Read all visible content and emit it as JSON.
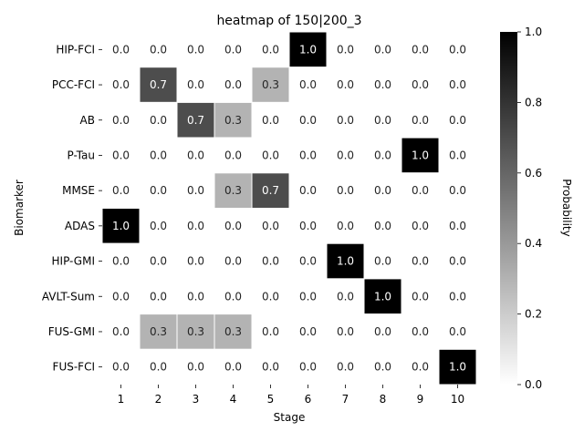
{
  "chart_data": {
    "type": "heatmap",
    "title": "heatmap of 150|200_3",
    "xlabel": "Stage",
    "ylabel": "Biomarker",
    "x_categories": [
      "1",
      "2",
      "3",
      "4",
      "5",
      "6",
      "7",
      "8",
      "9",
      "10"
    ],
    "y_categories": [
      "HIP-FCI",
      "PCC-FCI",
      "AB",
      "P-Tau",
      "MMSE",
      "ADAS",
      "HIP-GMI",
      "AVLT-Sum",
      "FUS-GMI",
      "FUS-FCI"
    ],
    "values": [
      [
        0.0,
        0.0,
        0.0,
        0.0,
        0.0,
        1.0,
        0.0,
        0.0,
        0.0,
        0.0
      ],
      [
        0.0,
        0.7,
        0.0,
        0.0,
        0.3,
        0.0,
        0.0,
        0.0,
        0.0,
        0.0
      ],
      [
        0.0,
        0.0,
        0.7,
        0.3,
        0.0,
        0.0,
        0.0,
        0.0,
        0.0,
        0.0
      ],
      [
        0.0,
        0.0,
        0.0,
        0.0,
        0.0,
        0.0,
        0.0,
        0.0,
        1.0,
        0.0
      ],
      [
        0.0,
        0.0,
        0.0,
        0.3,
        0.7,
        0.0,
        0.0,
        0.0,
        0.0,
        0.0
      ],
      [
        1.0,
        0.0,
        0.0,
        0.0,
        0.0,
        0.0,
        0.0,
        0.0,
        0.0,
        0.0
      ],
      [
        0.0,
        0.0,
        0.0,
        0.0,
        0.0,
        0.0,
        1.0,
        0.0,
        0.0,
        0.0
      ],
      [
        0.0,
        0.0,
        0.0,
        0.0,
        0.0,
        0.0,
        0.0,
        1.0,
        0.0,
        0.0
      ],
      [
        0.0,
        0.3,
        0.3,
        0.3,
        0.0,
        0.0,
        0.0,
        0.0,
        0.0,
        0.0
      ],
      [
        0.0,
        0.0,
        0.0,
        0.0,
        0.0,
        0.0,
        0.0,
        0.0,
        0.0,
        1.0
      ]
    ],
    "value_format": "0.0",
    "colormap": "Greys",
    "colormap_low": "#ffffff",
    "colormap_high": "#000000",
    "vmin": 0.0,
    "vmax": 1.0,
    "colorbar": {
      "label": "Probability",
      "ticks": [
        "0.0",
        "0.2",
        "0.4",
        "0.6",
        "0.8",
        "1.0"
      ]
    },
    "grid": false,
    "cell_border_color": "#ffffff"
  }
}
